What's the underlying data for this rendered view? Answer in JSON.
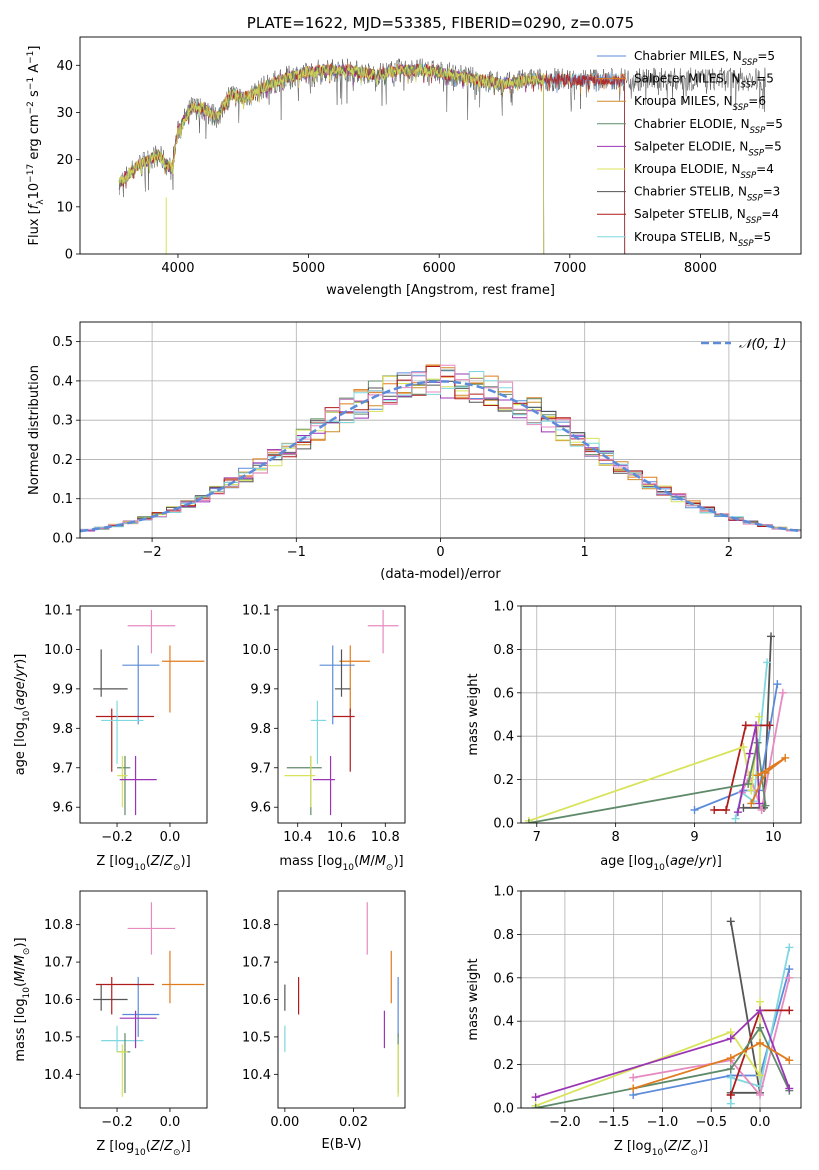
{
  "colors": {
    "chabrier_miles": "#5B8BD9",
    "salpeter_miles": "#E07B1E",
    "kroupa_miles": "#D08A2A",
    "chabrier_elodie": "#5F8A6A",
    "salpeter_elodie": "#9B35B5",
    "kroupa_elodie": "#D8E35A",
    "chabrier_stelib": "#555555",
    "salpeter_stelib": "#B01C1C",
    "kroupa_stelib": "#7FD8E0",
    "pink": "#E68AC0",
    "normal": "#5B8BD9"
  },
  "chart_data": [
    {
      "id": "spectrum",
      "type": "line",
      "title": "PLATE=1622, MJD=53385, FIBERID=0290, z=0.075",
      "xlabel": "wavelength [Angstrom, rest frame]",
      "ylabel": "Flux [f_λ 10^-17 erg cm^-2 s^-1 A^-1]",
      "xlim": [
        3250,
        8770
      ],
      "ylim": [
        0,
        46
      ],
      "xticks": [
        4000,
        5000,
        6000,
        7000,
        8000
      ],
      "yticks": [
        0,
        10,
        20,
        30,
        40
      ],
      "legend_position": "top-right",
      "spectrum_anchor_points": {
        "x": [
          3550,
          3700,
          3850,
          3950,
          4000,
          4100,
          4200,
          4300,
          4400,
          4500,
          4700,
          4900,
          5100,
          5300,
          5500,
          5700,
          5900,
          6100,
          6300,
          6500,
          6700,
          6900,
          7100,
          7300,
          7400,
          7500
        ],
        "y": [
          15,
          19,
          21,
          18,
          26,
          31,
          31,
          29,
          34,
          33,
          36,
          38,
          39,
          39,
          38,
          39,
          39,
          38,
          37,
          36,
          37,
          37,
          37,
          37,
          37,
          37
        ]
      },
      "series": [
        {
          "name": "Chabrier MILES, N_SSP=5",
          "color_key": "chabrier_miles"
        },
        {
          "name": "Salpeter MILES, N_SSP=5",
          "color_key": "salpeter_miles"
        },
        {
          "name": "Kroupa MILES, N_SSP=6",
          "color_key": "kroupa_miles"
        },
        {
          "name": "Chabrier ELODIE, N_SSP=5",
          "color_key": "chabrier_elodie"
        },
        {
          "name": "Salpeter ELODIE, N_SSP=5",
          "color_key": "salpeter_elodie"
        },
        {
          "name": "Kroupa ELODIE, N_SSP=4",
          "color_key": "kroupa_elodie"
        },
        {
          "name": "Chabrier STELIB, N_SSP=3",
          "color_key": "chabrier_stelib"
        },
        {
          "name": "Salpeter STELIB, N_SSP=4",
          "color_key": "salpeter_stelib"
        },
        {
          "name": "Kroupa STELIB, N_SSP=5",
          "color_key": "kroupa_stelib"
        }
      ],
      "legend_labels": [
        [
          "Chabrier MILES, N",
          "SSP",
          "=5"
        ],
        [
          "Salpeter MILES, N",
          "SSP",
          "=5"
        ],
        [
          "Kroupa MILES, N",
          "SSP",
          "=6"
        ],
        [
          "Chabrier ELODIE, N",
          "SSP",
          "=5"
        ],
        [
          "Salpeter ELODIE, N",
          "SSP",
          "=5"
        ],
        [
          "Kroupa ELODIE, N",
          "SSP",
          "=4"
        ],
        [
          "Chabrier STELIB, N",
          "SSP",
          "=3"
        ],
        [
          "Salpeter STELIB, N",
          "SSP",
          "=4"
        ],
        [
          "Kroupa STELIB, N",
          "SSP",
          "=5"
        ]
      ]
    },
    {
      "id": "residuals",
      "type": "line",
      "xlabel": "(data-model)/error",
      "ylabel": "Normed distribution",
      "xlim": [
        -2.5,
        2.5
      ],
      "ylim": [
        0,
        0.55
      ],
      "xticks": [
        -2,
        -1,
        0,
        1,
        2
      ],
      "yticks": [
        0.0,
        0.1,
        0.2,
        0.3,
        0.4,
        0.5
      ],
      "grid": true,
      "legend_position": "top-right",
      "normal_label": "𝒩(0, 1)",
      "bin_width": 0.1
    },
    {
      "id": "age_vs_Z",
      "type": "scatter",
      "xlabel": "Z [log10(Z/Z☉)]",
      "ylabel": "age [log10(age/yr)]",
      "xlim": [
        -0.34,
        0.14
      ],
      "ylim": [
        9.56,
        10.11
      ],
      "xticks": [
        -0.2,
        0.0
      ],
      "yticks": [
        9.6,
        9.7,
        9.8,
        9.9,
        10.0,
        10.1
      ]
    },
    {
      "id": "age_vs_mass",
      "type": "scatter",
      "xlabel": "mass [log10(M/M☉)]",
      "ylabel": "",
      "xlim": [
        10.31,
        10.89
      ],
      "ylim": [
        9.56,
        10.11
      ],
      "xticks": [
        10.4,
        10.6,
        10.8
      ],
      "yticks": [
        9.6,
        9.7,
        9.8,
        9.9,
        10.0,
        10.1
      ]
    },
    {
      "id": "weight_vs_age",
      "type": "line",
      "xlabel": "age [log10(age/yr)]",
      "ylabel": "mass weight",
      "xlim": [
        6.8,
        10.35
      ],
      "ylim": [
        0,
        1.0
      ],
      "xticks": [
        7,
        8,
        9,
        10
      ],
      "yticks": [
        0.0,
        0.2,
        0.4,
        0.6,
        0.8,
        1.0
      ],
      "grid": true
    },
    {
      "id": "mass_vs_Z",
      "type": "scatter",
      "xlabel": "Z [log10(Z/Z☉)]",
      "ylabel": "mass [log10(M/M☉)]",
      "xlim": [
        -0.34,
        0.14
      ],
      "ylim": [
        10.31,
        10.89
      ],
      "xticks": [
        -0.2,
        0.0
      ],
      "yticks": [
        10.4,
        10.5,
        10.6,
        10.7,
        10.8
      ]
    },
    {
      "id": "mass_vs_ebv",
      "type": "scatter",
      "xlabel": "E(B-V)",
      "ylabel": "",
      "xlim": [
        -0.002,
        0.035
      ],
      "ylim": [
        10.31,
        10.89
      ],
      "xticks": [
        0.0,
        0.02
      ],
      "yticks": [
        10.4,
        10.5,
        10.6,
        10.7,
        10.8
      ]
    },
    {
      "id": "weight_vs_Z",
      "type": "line",
      "xlabel": "Z [log10(Z/Z☉)]",
      "ylabel": "mass weight",
      "xlim": [
        -2.45,
        0.42
      ],
      "ylim": [
        0,
        1.0
      ],
      "xticks": [
        -2.0,
        -1.5,
        -1.0,
        -0.5,
        0.0
      ],
      "yticks": [
        0.0,
        0.2,
        0.4,
        0.6,
        0.8,
        1.0
      ],
      "grid": true
    }
  ],
  "fit_results": [
    {
      "c": "pink",
      "Z": -0.07,
      "Zlo": 0.09,
      "Zhi": 0.09,
      "age": 10.06,
      "alo": 0.07,
      "ahi": 0.04,
      "mass": 10.79,
      "mlo": 0.07,
      "mhi": 0.07,
      "ebv": 0.024
    },
    {
      "c": "salpeter_miles",
      "Z": 0.0,
      "Zlo": 0.03,
      "Zhi": 0.13,
      "age": 9.97,
      "alo": 0.13,
      "ahi": 0.04,
      "mass": 10.64,
      "mlo": 0.05,
      "mhi": 0.09,
      "ebv": 0.031
    },
    {
      "c": "chabrier_miles",
      "Z": -0.12,
      "Zlo": 0.06,
      "Zhi": 0.08,
      "age": 9.96,
      "alo": 0.15,
      "ahi": 0.05,
      "mass": 10.56,
      "mlo": 0.06,
      "mhi": 0.1,
      "ebv": 0.033
    },
    {
      "c": "chabrier_stelib",
      "Z": -0.26,
      "Zlo": 0.03,
      "Zhi": 0.1,
      "age": 9.9,
      "alo": 0.02,
      "ahi": 0.1,
      "mass": 10.6,
      "mlo": 0.03,
      "mhi": 0.04,
      "ebv": 0.0
    },
    {
      "c": "salpeter_stelib",
      "Z": -0.22,
      "Zlo": 0.06,
      "Zhi": 0.16,
      "age": 9.83,
      "alo": 0.14,
      "ahi": 0.02,
      "mass": 10.64,
      "mlo": 0.08,
      "mhi": 0.02,
      "ebv": 0.004
    },
    {
      "c": "kroupa_stelib",
      "Z": -0.2,
      "Zlo": 0.06,
      "Zhi": 0.1,
      "age": 9.82,
      "alo": 0.11,
      "ahi": 0.05,
      "mass": 10.49,
      "mlo": 0.03,
      "mhi": 0.04,
      "ebv": 0.0
    },
    {
      "c": "chabrier_elodie",
      "Z": -0.17,
      "Zlo": 0.03,
      "Zhi": 0.02,
      "age": 9.7,
      "alo": 0.12,
      "ahi": 0.03,
      "mass": 10.46,
      "mlo": 0.11,
      "mhi": 0.05,
      "ebv": 0.033
    },
    {
      "c": "kroupa_elodie",
      "Z": -0.18,
      "Zlo": 0.02,
      "Zhi": 0.02,
      "age": 9.68,
      "alo": 0.08,
      "ahi": 0.05,
      "mass": 10.46,
      "mlo": 0.12,
      "mhi": 0.02,
      "ebv": 0.033
    },
    {
      "c": "salpeter_elodie",
      "Z": -0.13,
      "Zlo": 0.06,
      "Zhi": 0.08,
      "age": 9.67,
      "alo": 0.09,
      "ahi": 0.06,
      "mass": 10.55,
      "mlo": 0.08,
      "mhi": 0.02,
      "ebv": 0.029
    }
  ],
  "weights": [
    {
      "c": "chabrier_stelib",
      "age": [
        9.62,
        9.88,
        9.97
      ],
      "Z": [
        -0.3,
        0.0,
        -0.3
      ],
      "w": [
        0.07,
        0.07,
        0.86
      ]
    },
    {
      "c": "chabrier_miles",
      "age": [
        9.0,
        9.62,
        9.82,
        10.05
      ],
      "Z": [
        -1.3,
        -0.3,
        0.0,
        0.3
      ],
      "w": [
        0.06,
        0.15,
        0.15,
        0.64
      ]
    },
    {
      "c": "kroupa_stelib",
      "age": [
        9.52,
        9.6,
        9.75,
        9.92
      ],
      "Z": [
        -0.3,
        -0.3,
        0.0,
        0.3
      ],
      "w": [
        0.02,
        0.14,
        0.1,
        0.74
      ]
    },
    {
      "c": "pink",
      "age": [
        9.6,
        9.7,
        9.85,
        10.12
      ],
      "Z": [
        -1.3,
        -0.3,
        0.0,
        0.3
      ],
      "w": [
        0.14,
        0.22,
        0.06,
        0.6
      ]
    },
    {
      "c": "salpeter_stelib",
      "age": [
        9.25,
        9.4,
        9.65,
        9.95
      ],
      "Z": [
        -0.3,
        -0.3,
        0.0,
        0.3
      ],
      "w": [
        0.06,
        0.06,
        0.45,
        0.45
      ]
    },
    {
      "c": "kroupa_elodie",
      "age": [
        6.9,
        9.62,
        9.72,
        9.82
      ],
      "Z": [
        -2.3,
        -0.3,
        0.0,
        0.0
      ],
      "w": [
        0.01,
        0.35,
        0.15,
        0.49
      ]
    },
    {
      "c": "chabrier_elodie",
      "age": [
        6.9,
        9.68,
        9.8,
        9.9
      ],
      "Z": [
        -2.3,
        -0.3,
        0.0,
        0.3
      ],
      "w": [
        0.0,
        0.18,
        0.37,
        0.08
      ]
    },
    {
      "c": "salpeter_elodie",
      "age": [
        9.55,
        9.7,
        9.78,
        9.82
      ],
      "Z": [
        -2.3,
        -0.3,
        0.0,
        0.3
      ],
      "w": [
        0.05,
        0.32,
        0.45,
        0.09
      ]
    },
    {
      "c": "salpeter_miles",
      "age": [
        9.72,
        9.9,
        10.15,
        9.8
      ],
      "Z": [
        -1.3,
        -0.3,
        0.0,
        0.3
      ],
      "w": [
        0.09,
        0.23,
        0.3,
        0.22
      ]
    }
  ]
}
